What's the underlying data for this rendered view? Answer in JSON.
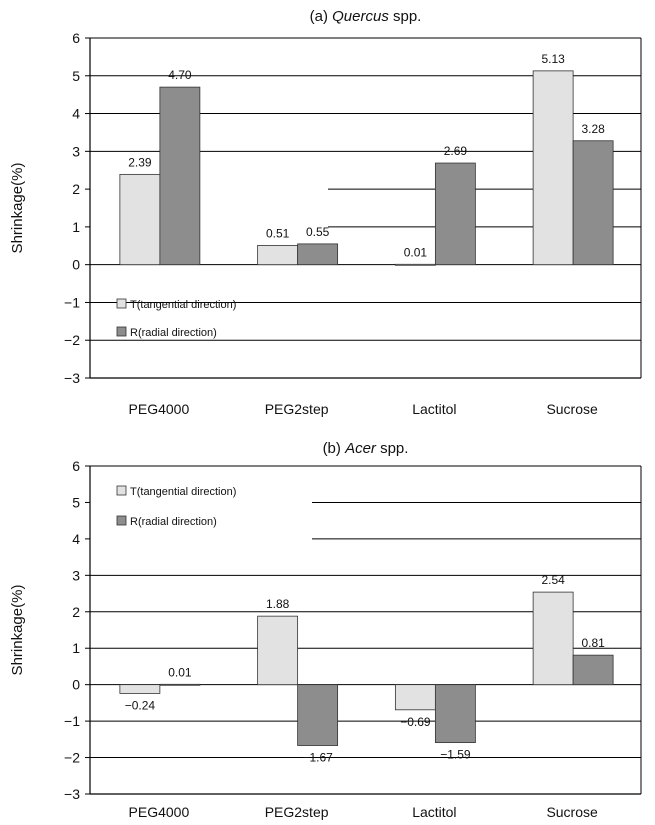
{
  "chart_data": [
    {
      "type": "bar",
      "title_prefix": "(a) ",
      "title_italic": "Quercus",
      "title_suffix": " spp.",
      "ylabel": "Shrinkage(%)",
      "xlabel": "",
      "ylim": [
        -3,
        6
      ],
      "yticks": [
        "6",
        "5",
        "4",
        "3",
        "2",
        "1",
        "0",
        "−1",
        "−2",
        "−3"
      ],
      "categories": [
        "PEG4000",
        "PEG2step",
        "Lactitol",
        "Sucrose"
      ],
      "series": [
        {
          "name": "T(tangential direction)",
          "values": [
            2.39,
            0.51,
            0.01,
            5.13
          ],
          "labels": [
            "2.39",
            "0.51",
            "0.01",
            "5.13"
          ],
          "color": "#e2e2e2"
        },
        {
          "name": "R(radial direction)",
          "values": [
            4.7,
            0.55,
            2.69,
            3.28
          ],
          "labels": [
            "4.70",
            "0.55",
            "2.69",
            "3.28"
          ],
          "color": "#8d8d8d"
        }
      ],
      "legend_position": "bottom-left",
      "grid": true
    },
    {
      "type": "bar",
      "title_prefix": "(b) ",
      "title_italic": "Acer",
      "title_suffix": " spp.",
      "ylabel": "Shrinkage(%)",
      "xlabel": "",
      "ylim": [
        -3,
        6
      ],
      "yticks": [
        "6",
        "5",
        "4",
        "3",
        "2",
        "1",
        "0",
        "−1",
        "−2",
        "−3"
      ],
      "categories": [
        "PEG4000",
        "PEG2step",
        "Lactitol",
        "Sucrose"
      ],
      "series": [
        {
          "name": "T(tangential direction)",
          "values": [
            -0.24,
            1.88,
            -0.69,
            2.54
          ],
          "labels": [
            "−0.24",
            "1.88",
            "−0.69",
            "2.54"
          ],
          "color": "#e2e2e2"
        },
        {
          "name": "R(radial direction)",
          "values": [
            0.01,
            -1.67,
            -1.59,
            0.81
          ],
          "labels": [
            "0.01",
            "−1.67",
            "−1.59",
            "0.81"
          ],
          "color": "#8d8d8d"
        }
      ],
      "legend_position": "top-left",
      "grid": true
    }
  ]
}
